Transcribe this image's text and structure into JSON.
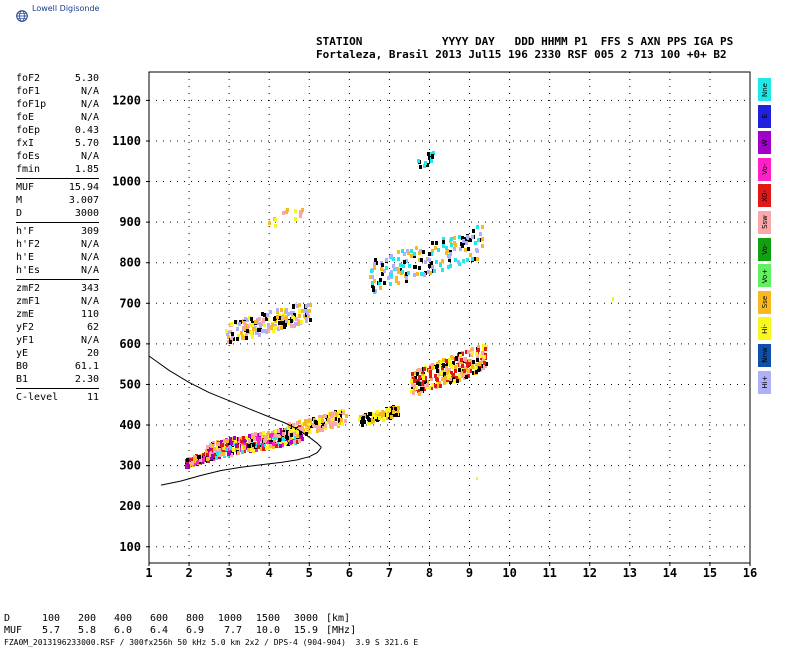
{
  "header": {
    "logo_text": "Lowell Digisonde",
    "line1": "STATION            YYYY DAY   DDD HHMM P1  FFS S AXN PPS IGA PS",
    "line2": "Fortaleza, Brasil 2013 Jul15 196 2330 RSF 005 2 713 100 +0+ B2"
  },
  "params": [
    {
      "name": "foF2",
      "value": "5.30"
    },
    {
      "name": "foF1",
      "value": "N/A"
    },
    {
      "name": "foF1p",
      "value": "N/A"
    },
    {
      "name": "foE",
      "value": "N/A"
    },
    {
      "name": "foEp",
      "value": "0.43"
    },
    {
      "name": "fxI",
      "value": "5.70"
    },
    {
      "name": "foEs",
      "value": "N/A"
    },
    {
      "name": "fmin",
      "value": "1.85"
    },
    {
      "sep": true
    },
    {
      "name": "MUF",
      "value": "15.94"
    },
    {
      "name": "M",
      "value": "3.007"
    },
    {
      "name": "D",
      "value": "3000"
    },
    {
      "sep": true
    },
    {
      "name": "h'F",
      "value": "309"
    },
    {
      "name": "h'F2",
      "value": "N/A"
    },
    {
      "name": "h'E",
      "value": "N/A"
    },
    {
      "name": "h'Es",
      "value": "N/A"
    },
    {
      "sep": true
    },
    {
      "name": "zmF2",
      "value": "343"
    },
    {
      "name": "zmF1",
      "value": "N/A"
    },
    {
      "name": "zmE",
      "value": "110"
    },
    {
      "name": "yF2",
      "value": "62"
    },
    {
      "name": "yF1",
      "value": "N/A"
    },
    {
      "name": "yE",
      "value": "20"
    },
    {
      "name": "B0",
      "value": "61.1"
    },
    {
      "name": "B1",
      "value": "2.30"
    },
    {
      "sep": true
    },
    {
      "name": "C-level",
      "value": "11"
    }
  ],
  "legend": [
    {
      "label": "Nne",
      "color": "#20e8e8"
    },
    {
      "label": "E",
      "color": "#2020e0"
    },
    {
      "label": "W",
      "color": "#a000c8"
    },
    {
      "label": "Vo-",
      "color": "#ff20c8"
    },
    {
      "label": "X0-",
      "color": "#e01818"
    },
    {
      "label": "Ssw",
      "color": "#f8a8a8"
    },
    {
      "label": "Vo-",
      "color": "#10a010"
    },
    {
      "label": "Vo+",
      "color": "#60f060"
    },
    {
      "label": "Sse",
      "color": "#f8b820"
    },
    {
      "label": "Hi-",
      "color": "#f8f820"
    },
    {
      "label": "Nnw",
      "color": "#1050a8"
    },
    {
      "label": "Hi+",
      "color": "#b0b0f8"
    }
  ],
  "d_table": {
    "d_label": "D",
    "d_values": [
      "100",
      "200",
      "400",
      "600",
      "800",
      "1000",
      "1500",
      "3000"
    ],
    "d_unit": "[km]",
    "muf_label": "MUF",
    "muf_values": [
      "5.7",
      "5.8",
      "6.0",
      "6.4",
      "6.9",
      "7.7",
      "10.0",
      "15.9"
    ],
    "muf_unit": "[MHz]"
  },
  "footer": "FZA0M_2013196233000.RSF / 300fx256h 50 kHz 5.0 km 2x2 / DPS-4 (904-904)  3.9 S 321.6 E",
  "chart_data": {
    "type": "scatter",
    "xlim": [
      1,
      16
    ],
    "ylim": [
      60,
      1270
    ],
    "x_ticks": [
      1,
      2,
      3,
      4,
      5,
      6,
      7,
      8,
      9,
      10,
      11,
      12,
      13,
      14,
      15,
      16
    ],
    "y_ticks": [
      100,
      200,
      300,
      400,
      500,
      600,
      700,
      800,
      900,
      1000,
      1100,
      1200
    ],
    "grid": "dotted",
    "clusters": [
      {
        "x": [
          1.9,
          2.6
        ],
        "y": [
          300,
          340
        ],
        "n": 160,
        "colors": [
          "#f8b820",
          "#e01818",
          "#ff20c8",
          "#000000",
          "#f8a8a8",
          "#a000c8"
        ]
      },
      {
        "x": [
          2.4,
          4.8
        ],
        "y": [
          320,
          400
        ],
        "n": 420,
        "colors": [
          "#000000",
          "#f8b820",
          "#f8a8a8",
          "#e01818",
          "#ff20c8",
          "#f8f820",
          "#a000c8",
          "#20e8e8"
        ]
      },
      {
        "x": [
          4.4,
          5.9
        ],
        "y": [
          370,
          440
        ],
        "n": 170,
        "colors": [
          "#f8b820",
          "#000000",
          "#f8a8a8",
          "#f8f820"
        ]
      },
      {
        "x": [
          6.2,
          7.2
        ],
        "y": [
          400,
          450
        ],
        "n": 110,
        "colors": [
          "#f8b820",
          "#000000",
          "#f8f820"
        ]
      },
      {
        "x": [
          7.5,
          9.4
        ],
        "y": [
          470,
          600
        ],
        "n": 300,
        "colors": [
          "#f8b820",
          "#000000",
          "#f8a8a8",
          "#f8f820",
          "#e01818"
        ]
      },
      {
        "x": [
          2.9,
          5.0
        ],
        "y": [
          605,
          705
        ],
        "n": 190,
        "colors": [
          "#000000",
          "#f8f820",
          "#f8a8a8",
          "#f8b820",
          "#b0b0f8"
        ]
      },
      {
        "x": [
          6.5,
          9.3
        ],
        "y": [
          730,
          890
        ],
        "n": 170,
        "colors": [
          "#000000",
          "#20e8e8",
          "#b0b0f8",
          "#f8b820"
        ]
      },
      {
        "x": [
          3.9,
          4.8
        ],
        "y": [
          880,
          950
        ],
        "n": 14,
        "colors": [
          "#f8f820",
          "#f8b820",
          "#f8a8a8"
        ]
      },
      {
        "x": [
          7.7,
          8.1
        ],
        "y": [
          1030,
          1085
        ],
        "n": 18,
        "colors": [
          "#000000",
          "#20e8e8"
        ]
      }
    ],
    "profile_curves": [
      {
        "x": [
          1.0,
          1.5,
          2.0,
          2.5,
          3.0,
          3.5,
          4.0,
          4.4,
          4.7,
          5.0,
          5.2,
          5.3
        ],
        "y": [
          570,
          535,
          505,
          480,
          460,
          440,
          420,
          405,
          390,
          370,
          355,
          345
        ]
      },
      {
        "x": [
          1.3,
          1.8,
          2.3,
          2.8,
          3.3,
          3.8,
          4.3,
          4.7,
          5.0,
          5.2,
          5.3
        ],
        "y": [
          252,
          262,
          276,
          288,
          296,
          302,
          308,
          314,
          322,
          332,
          345
        ]
      }
    ]
  }
}
